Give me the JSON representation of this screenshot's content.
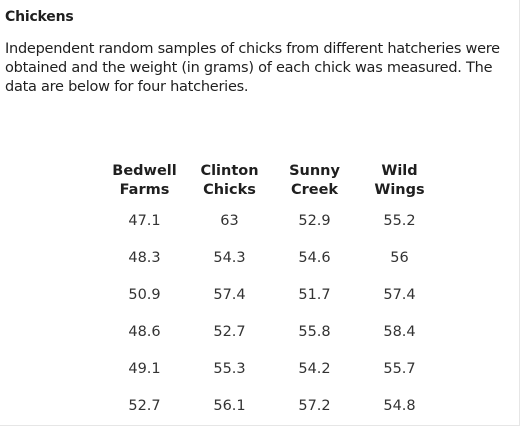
{
  "title": "Chickens",
  "description": "Independent random samples of chicks from different hatcheries were obtained and the weight (in grams) of each chick was measured. The data are below for four hatcheries.",
  "table": {
    "headers": [
      [
        "Bedwell",
        "Farms"
      ],
      [
        "Clinton",
        "Chicks"
      ],
      [
        "Sunny",
        "Creek"
      ],
      [
        "Wild",
        "Wings"
      ]
    ],
    "rows": [
      [
        "47.1",
        "63",
        "52.9",
        "55.2"
      ],
      [
        "48.3",
        "54.3",
        "54.6",
        "56"
      ],
      [
        "50.9",
        "57.4",
        "51.7",
        "57.4"
      ],
      [
        "48.6",
        "52.7",
        "55.8",
        "58.4"
      ],
      [
        "49.1",
        "55.3",
        "54.2",
        "55.7"
      ],
      [
        "52.7",
        "56.1",
        "57.2",
        "54.8"
      ]
    ]
  }
}
